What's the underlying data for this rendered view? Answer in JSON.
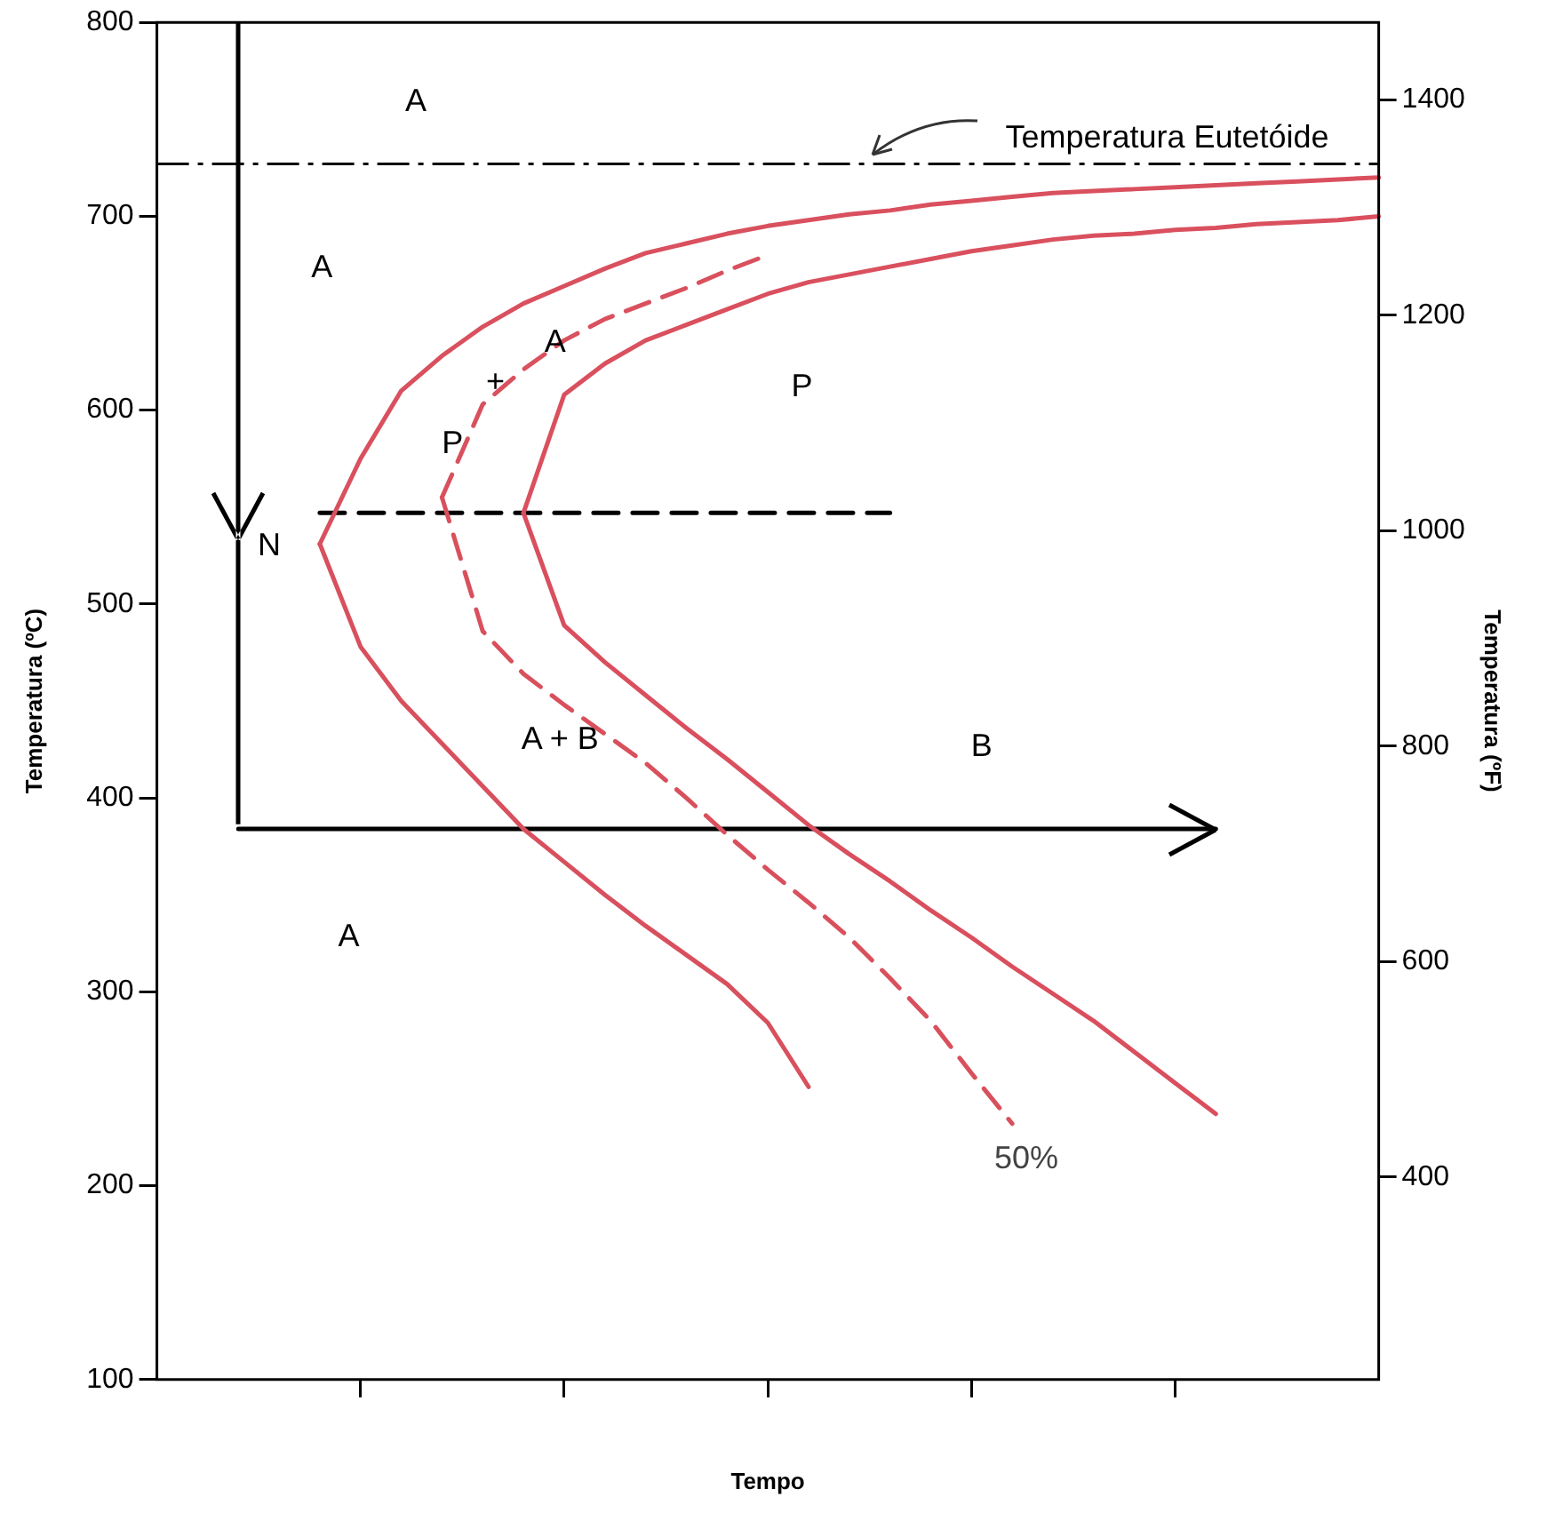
{
  "chart_data": {
    "type": "line",
    "xlabel": "Tempo",
    "ylabel": "Temperatura (ºC)",
    "y2label": "Temperatura (ºF)",
    "categories": [
      null,
      null,
      null,
      null,
      null,
      null,
      null,
      null,
      null,
      null,
      null,
      null,
      null,
      null,
      null,
      null,
      null,
      null,
      null,
      null,
      null,
      null,
      null,
      null,
      null,
      null,
      null,
      null,
      null,
      null,
      null
    ],
    "ylim": [
      100,
      800
    ],
    "yticks": [
      100,
      200,
      300,
      400,
      500,
      600,
      700,
      800
    ],
    "y2lim": [
      212,
      1472
    ],
    "y2ticks": [
      400,
      600,
      800,
      1000,
      1200,
      1400
    ],
    "tick_labels": "y",
    "grid": false,
    "legend": false,
    "marker": "none",
    "ref_lines": [
      {
        "axis": "y",
        "value": 727,
        "label": "Temperatura Eutetóide",
        "color": "#000000",
        "line_style": "dashed"
      }
    ],
    "series": [
      {
        "color": "#d9505e",
        "line_style": "solid",
        "values": [
          null,
          null,
          null,
          null,
          531,
          575,
          610,
          628,
          643,
          655,
          664,
          673,
          681,
          686,
          691,
          695,
          698,
          701,
          703,
          706,
          708,
          710,
          712,
          713,
          714,
          715,
          716,
          717,
          718,
          719,
          720
        ]
      },
      {
        "color": "#d8505e",
        "line_style": "solid",
        "values": [
          null,
          null,
          null,
          null,
          531,
          478,
          450,
          428,
          406,
          384,
          367,
          350,
          334,
          319,
          304,
          284,
          251,
          null,
          null,
          null,
          null,
          null,
          null,
          null,
          null,
          null,
          null,
          null,
          null,
          null,
          null
        ]
      },
      {
        "color": "#d9515e",
        "line_style": "dashed",
        "values": [
          null,
          null,
          null,
          null,
          null,
          null,
          null,
          555,
          603,
          621,
          636,
          647,
          655,
          663,
          672,
          680,
          null,
          null,
          null,
          null,
          null,
          null,
          null,
          null,
          null,
          null,
          null,
          null,
          null,
          null,
          null
        ]
      },
      {
        "name": "50%",
        "color": "#d9505d",
        "line_style": "dashed",
        "values": [
          null,
          null,
          null,
          null,
          null,
          null,
          null,
          555,
          486,
          464,
          448,
          433,
          418,
          400,
          381,
          363,
          346,
          328,
          307,
          285,
          258,
          232,
          null,
          null,
          null,
          null,
          null,
          null,
          null,
          null,
          null
        ]
      },
      {
        "color": "#da505e",
        "line_style": "solid",
        "values": [
          null,
          null,
          null,
          null,
          null,
          null,
          null,
          null,
          null,
          547,
          608,
          624,
          636,
          644,
          652,
          660,
          666,
          670,
          674,
          678,
          682,
          685,
          688,
          690,
          691,
          693,
          694,
          696,
          697,
          698,
          700
        ]
      },
      {
        "color": "#d94f5e",
        "line_style": "solid",
        "values": [
          null,
          null,
          null,
          null,
          null,
          null,
          null,
          null,
          null,
          547,
          489,
          470,
          453,
          436,
          420,
          403,
          386,
          371,
          357,
          342,
          328,
          313,
          299,
          285,
          269,
          253,
          237,
          null,
          null,
          null,
          null
        ]
      },
      {
        "color": "#000000",
        "line_style": "solid",
        "values": [
          null,
          null,
          384,
          384,
          384,
          384,
          384,
          384,
          384,
          384,
          384,
          384,
          384,
          384,
          384,
          384,
          384,
          384,
          384,
          384,
          384,
          384,
          384,
          384,
          384,
          384,
          384,
          null,
          null,
          null,
          null
        ]
      },
      {
        "color": "#000000",
        "line_style": "dashed",
        "values": [
          null,
          null,
          null,
          null,
          547,
          547,
          547,
          547,
          547,
          547,
          547,
          547,
          547,
          547,
          547,
          547,
          547,
          547,
          547,
          null,
          null,
          null,
          null,
          null,
          null,
          null,
          null,
          null,
          null,
          null,
          null
        ]
      }
    ],
    "annotations": [
      "A",
      "A",
      "P",
      "+",
      "A",
      "P",
      "N",
      "A + B",
      "B",
      "A"
    ]
  }
}
